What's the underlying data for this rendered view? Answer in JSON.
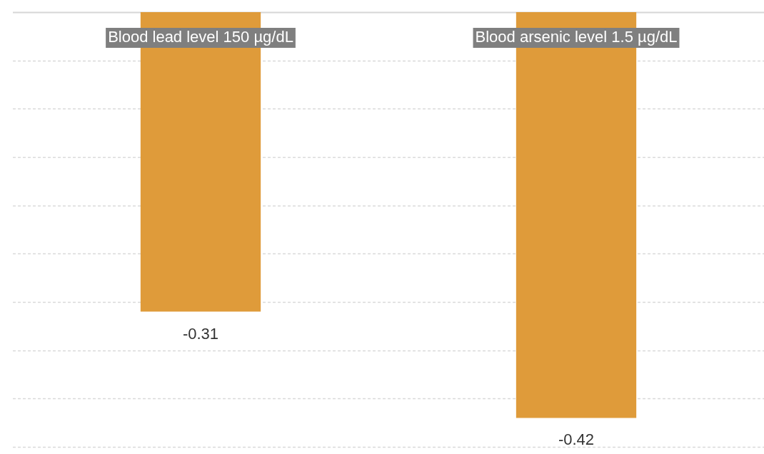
{
  "chart_data": {
    "type": "bar",
    "categories": [
      "Blood lead level 150 µg/dL",
      "Blood arsenic level 1.5 µg/dL"
    ],
    "series": [
      {
        "color": "#df9b3a",
        "values": [
          -0.31,
          -0.42
        ]
      }
    ],
    "ylim": [
      -0.45,
      0
    ],
    "yticks": [
      {
        "value": -0.45,
        "label": null
      },
      {
        "value": -0.4,
        "label": null
      },
      {
        "value": -0.35,
        "label": null
      },
      {
        "value": -0.3,
        "label": null
      },
      {
        "value": -0.25,
        "label": null
      },
      {
        "value": -0.2,
        "label": null
      },
      {
        "value": -0.15,
        "label": null
      },
      {
        "value": -0.1,
        "label": null
      },
      {
        "value": -0.05,
        "label": null
      },
      {
        "value": 0,
        "label": null
      }
    ],
    "grid": "y",
    "tick_labels": "x",
    "data_labels": true,
    "legend": false
  }
}
